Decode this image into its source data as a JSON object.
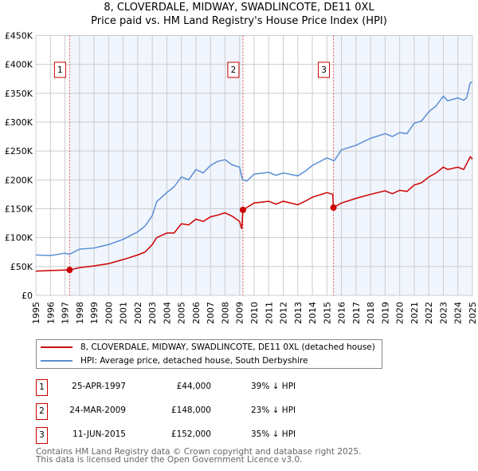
{
  "chart_data": {
    "type": "line",
    "title": "8, CLOVERDALE, MIDWAY, SWADLINCOTE, DE11 0XL",
    "subtitle": "Price paid vs. HM Land Registry's House Price Index (HPI)",
    "xlim": [
      1995,
      2025
    ],
    "ylim": [
      0,
      450000
    ],
    "y_ticks": [
      {
        "v": 0,
        "label": "£0"
      },
      {
        "v": 50000,
        "label": "£50K"
      },
      {
        "v": 100000,
        "label": "£100K"
      },
      {
        "v": 150000,
        "label": "£150K"
      },
      {
        "v": 200000,
        "label": "£200K"
      },
      {
        "v": 250000,
        "label": "£250K"
      },
      {
        "v": 300000,
        "label": "£300K"
      },
      {
        "v": 350000,
        "label": "£350K"
      },
      {
        "v": 400000,
        "label": "£400K"
      },
      {
        "v": 450000,
        "label": "£450K"
      }
    ],
    "x_ticks": [
      "1995",
      "1996",
      "1997",
      "1998",
      "1999",
      "2000",
      "2001",
      "2002",
      "2003",
      "2004",
      "2005",
      "2006",
      "2007",
      "2008",
      "2009",
      "2010",
      "2011",
      "2012",
      "2013",
      "2014",
      "2015",
      "2016",
      "2017",
      "2018",
      "2019",
      "2020",
      "2021",
      "2022",
      "2023",
      "2024",
      "2025"
    ],
    "grid": true,
    "series": [
      {
        "name": "8, CLOVERDALE, MIDWAY, SWADLINCOTE, DE11 0XL (detached house)",
        "color": "#cc0000",
        "points": [
          [
            1995,
            42000
          ],
          [
            1996,
            43000
          ],
          [
            1997.32,
            44000
          ],
          [
            1998,
            48000
          ],
          [
            1999,
            51000
          ],
          [
            2000,
            55000
          ],
          [
            2001,
            62000
          ],
          [
            2002,
            70000
          ],
          [
            2002.5,
            75000
          ],
          [
            2003,
            88000
          ],
          [
            2003.3,
            100000
          ],
          [
            2004,
            108000
          ],
          [
            2004.5,
            108000
          ],
          [
            2005,
            124000
          ],
          [
            2005.5,
            122000
          ],
          [
            2006,
            132000
          ],
          [
            2006.5,
            128000
          ],
          [
            2007,
            136000
          ],
          [
            2007.5,
            139000
          ],
          [
            2008,
            143000
          ],
          [
            2008.5,
            137000
          ],
          [
            2009,
            128000
          ],
          [
            2009.15,
            115000
          ],
          [
            2009.23,
            148000
          ],
          [
            2010,
            160000
          ],
          [
            2011,
            163000
          ],
          [
            2011.5,
            158000
          ],
          [
            2012,
            163000
          ],
          [
            2013,
            157000
          ],
          [
            2013.5,
            163000
          ],
          [
            2014,
            170000
          ],
          [
            2015,
            178000
          ],
          [
            2015.4,
            175000
          ],
          [
            2015.45,
            152000
          ],
          [
            2016,
            160000
          ],
          [
            2017,
            168000
          ],
          [
            2018,
            175000
          ],
          [
            2019,
            181000
          ],
          [
            2019.5,
            176000
          ],
          [
            2020,
            182000
          ],
          [
            2020.5,
            180000
          ],
          [
            2021,
            191000
          ],
          [
            2021.5,
            195000
          ],
          [
            2022,
            205000
          ],
          [
            2022.5,
            212000
          ],
          [
            2023,
            222000
          ],
          [
            2023.3,
            218000
          ],
          [
            2024,
            222000
          ],
          [
            2024.4,
            218000
          ],
          [
            2024.85,
            240000
          ],
          [
            2025,
            236000
          ]
        ]
      },
      {
        "name": "HPI: Average price, detached house, South Derbyshire",
        "color": "#5b8fd4",
        "points": [
          [
            1995,
            70000
          ],
          [
            1996,
            69000
          ],
          [
            1997,
            73000
          ],
          [
            1997.3,
            71000
          ],
          [
            1998,
            80000
          ],
          [
            1999,
            82000
          ],
          [
            2000,
            88000
          ],
          [
            2001,
            97000
          ],
          [
            2002,
            110000
          ],
          [
            2002.5,
            120000
          ],
          [
            2003,
            138000
          ],
          [
            2003.3,
            162000
          ],
          [
            2004,
            178000
          ],
          [
            2004.5,
            188000
          ],
          [
            2005,
            205000
          ],
          [
            2005.5,
            200000
          ],
          [
            2006,
            218000
          ],
          [
            2006.5,
            212000
          ],
          [
            2007,
            225000
          ],
          [
            2007.5,
            232000
          ],
          [
            2008,
            235000
          ],
          [
            2008.5,
            226000
          ],
          [
            2009,
            222000
          ],
          [
            2009.2,
            200000
          ],
          [
            2009.5,
            198000
          ],
          [
            2010,
            210000
          ],
          [
            2011,
            213000
          ],
          [
            2011.5,
            208000
          ],
          [
            2012,
            212000
          ],
          [
            2013,
            207000
          ],
          [
            2013.5,
            215000
          ],
          [
            2014,
            225000
          ],
          [
            2015,
            238000
          ],
          [
            2015.5,
            233000
          ],
          [
            2016,
            252000
          ],
          [
            2017,
            260000
          ],
          [
            2018,
            272000
          ],
          [
            2019,
            280000
          ],
          [
            2019.5,
            275000
          ],
          [
            2020,
            282000
          ],
          [
            2020.5,
            280000
          ],
          [
            2021,
            298000
          ],
          [
            2021.5,
            302000
          ],
          [
            2022,
            318000
          ],
          [
            2022.5,
            328000
          ],
          [
            2023,
            345000
          ],
          [
            2023.3,
            337000
          ],
          [
            2024,
            342000
          ],
          [
            2024.4,
            338000
          ],
          [
            2024.6,
            342000
          ],
          [
            2024.85,
            368000
          ],
          [
            2025,
            370000
          ]
        ]
      }
    ],
    "sales": [
      {
        "id": "1",
        "x": 1997.32,
        "price": 44000,
        "date": "25-APR-1997",
        "price_label": "£44,000",
        "hpi": "39% ↓ HPI"
      },
      {
        "id": "2",
        "x": 2009.23,
        "price": 148000,
        "date": "24-MAR-2009",
        "price_label": "£148,000",
        "hpi": "23% ↓ HPI"
      },
      {
        "id": "3",
        "x": 2015.45,
        "price": 152000,
        "date": "11-JUN-2015",
        "price_label": "£152,000",
        "hpi": "35% ↓ HPI"
      }
    ],
    "legend_position": "below"
  },
  "footer": {
    "line1": "Contains HM Land Registry data © Crown copyright and database right 2025.",
    "line2": "This data is licensed under the Open Government Licence v3.0."
  }
}
